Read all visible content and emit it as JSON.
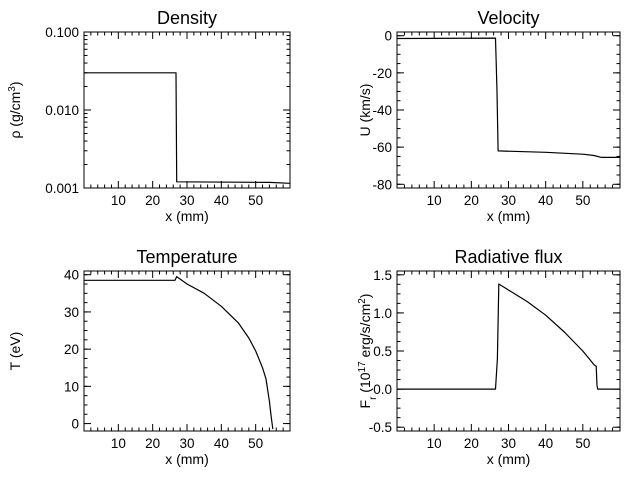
{
  "chart_data": [
    {
      "type": "line",
      "title": "Density",
      "xlabel": "x (mm)",
      "ylabel": {
        "main": "ρ (g/cm",
        "sup": "3",
        "tail": ")"
      },
      "xlim": [
        0,
        60
      ],
      "ylim": [
        0.001,
        0.1
      ],
      "ylog": true,
      "xticks": [
        10,
        20,
        30,
        40,
        50
      ],
      "yticks": [
        0.001,
        0.01,
        0.1
      ],
      "ytick_labels": [
        "0.001",
        "0.010",
        "0.100"
      ],
      "series": [
        {
          "x": [
            0,
            26.8,
            27.0,
            54.0,
            60
          ],
          "y": [
            0.03,
            0.03,
            0.0012,
            0.00118,
            0.00115
          ]
        }
      ]
    },
    {
      "type": "line",
      "title": "Velocity",
      "xlabel": "x (mm)",
      "ylabel": {
        "main": "U (km/s)",
        "sup": "",
        "tail": ""
      },
      "xlim": [
        0,
        60
      ],
      "ylim": [
        -82,
        2
      ],
      "ylog": false,
      "xticks": [
        10,
        20,
        30,
        40,
        50
      ],
      "yticks": [
        -80,
        -60,
        -40,
        -20,
        0
      ],
      "ytick_labels": [
        "-80",
        "-60",
        "-40",
        "-20",
        "0"
      ],
      "series": [
        {
          "x": [
            0,
            26.5,
            26.9,
            27.2,
            40,
            50,
            53,
            55,
            60
          ],
          "y": [
            -1.5,
            -1.3,
            -30,
            -62,
            -62.8,
            -63.8,
            -64.5,
            -65.5,
            -65.5
          ]
        }
      ]
    },
    {
      "type": "line",
      "title": "Temperature",
      "xlabel": "x (mm)",
      "ylabel": {
        "main": "T (eV)",
        "sup": "",
        "tail": ""
      },
      "xlim": [
        0,
        60
      ],
      "ylim": [
        -2,
        41
      ],
      "ylog": false,
      "xticks": [
        10,
        20,
        30,
        40,
        50
      ],
      "yticks": [
        0,
        10,
        20,
        30,
        40
      ],
      "ytick_labels": [
        "0",
        "10",
        "20",
        "30",
        "40"
      ],
      "series": [
        {
          "x": [
            0,
            10,
            26.5,
            27.0,
            30,
            35,
            40,
            45,
            48,
            50,
            52,
            53,
            53.5,
            54,
            54.5,
            54.8,
            55
          ],
          "y": [
            38.5,
            38.5,
            38.5,
            39.5,
            37.5,
            35,
            31.5,
            27,
            23,
            19.5,
            15,
            12,
            9,
            6,
            2,
            0,
            -1.5
          ]
        }
      ]
    },
    {
      "type": "line",
      "title": "Radiative flux",
      "xlabel": "x (mm)",
      "ylabel": {
        "main": "F",
        "sub": "r",
        "mid": " (10",
        "sup": "17",
        "tail": " erg/s/cm",
        "sup2": "2",
        "tail2": ")"
      },
      "xlim": [
        0,
        60
      ],
      "ylim": [
        -0.55,
        1.55
      ],
      "ylog": false,
      "xticks": [
        10,
        20,
        30,
        40,
        50
      ],
      "yticks": [
        -0.5,
        0,
        0.5,
        1,
        1.5
      ],
      "ytick_labels": [
        "-0.5",
        "0.0",
        "0.5",
        "1.0",
        "1.5"
      ],
      "series": [
        {
          "x": [
            0,
            26.5,
            27.0,
            27.4,
            30,
            35,
            40,
            45,
            50,
            52,
            53,
            53.6,
            53.8,
            54.0,
            60
          ],
          "y": [
            0,
            0,
            0.4,
            1.38,
            1.3,
            1.15,
            0.97,
            0.75,
            0.5,
            0.38,
            0.32,
            0.3,
            0.05,
            0,
            0
          ]
        }
      ]
    }
  ]
}
